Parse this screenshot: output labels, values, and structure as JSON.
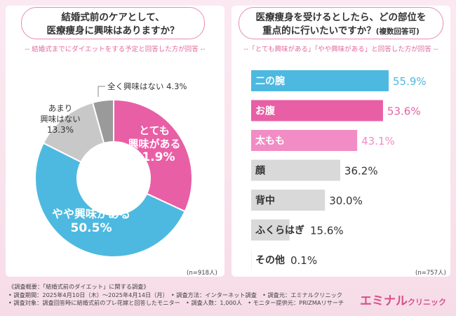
{
  "left": {
    "question": [
      "結婚式前のケアとして、",
      "医療痩身に興味はありますか？"
    ],
    "note": "-- 結婚式までにダイエットをする予定と回答した方が回答 --",
    "n_label": "(n=918人)"
  },
  "right": {
    "question_main": "医療痩身を受けるとしたら、どの部位を",
    "question_main2": "重点的に行いたいですか？",
    "question_sub": "(複数回答可)",
    "note": "--「とても興味がある」「やや興味がある」と回答した方が回答 --",
    "n_label": "(n=757人)"
  },
  "chart_data": [
    {
      "type": "pie",
      "labels": [
        "とても興味がある",
        "やや興味がある",
        "あまり興味はない",
        "全く興味はない"
      ],
      "values": [
        31.9,
        50.5,
        13.3,
        4.3
      ],
      "value_labels": [
        "31.9%",
        "50.5%",
        "13.3%",
        "4.3%"
      ],
      "colors": [
        "#e85fa6",
        "#4db9e0",
        "#c8c8c8",
        "#9a9a9a"
      ]
    },
    {
      "type": "bar",
      "categories": [
        "二の腕",
        "お腹",
        "太もも",
        "顔",
        "背中",
        "ふくらはぎ",
        "その他"
      ],
      "values": [
        55.9,
        53.6,
        43.1,
        36.2,
        30.0,
        15.6,
        0.1
      ],
      "value_labels": [
        "55.9%",
        "53.6%",
        "43.1%",
        "36.2%",
        "30.0%",
        "15.6%",
        "0.1%"
      ],
      "colors": [
        "#4db9e0",
        "#e85fa6",
        "#f18cc4",
        "#d9d9d9",
        "#d9d9d9",
        "#d9d9d9",
        "#d9d9d9"
      ],
      "value_colors": [
        "#4db9e0",
        "#e85fa6",
        "#f18cc4",
        "#333333",
        "#333333",
        "#333333",
        "#333333"
      ],
      "label_colors": [
        "#ffffff",
        "#ffffff",
        "#ffffff",
        "#333333",
        "#333333",
        "#333333",
        "#333333"
      ]
    }
  ],
  "footer": {
    "lines": [
      "《調査概要：「結婚式前のダイエット」に関する調査》",
      "• 調査期間：2025年4月10日（木）～2025年4月14日（月）　• 調査方法：インターネット調査　• 調査元：エミナルクリニック",
      "• 調査対象：調査回答時に結婚式前のプレ花嫁と回答したモニター　• 調査人数：1,000人　• モニター提供元：PRIZMAリサーチ"
    ]
  },
  "logo": {
    "main": "エミナル",
    "sub": "クリニック"
  }
}
